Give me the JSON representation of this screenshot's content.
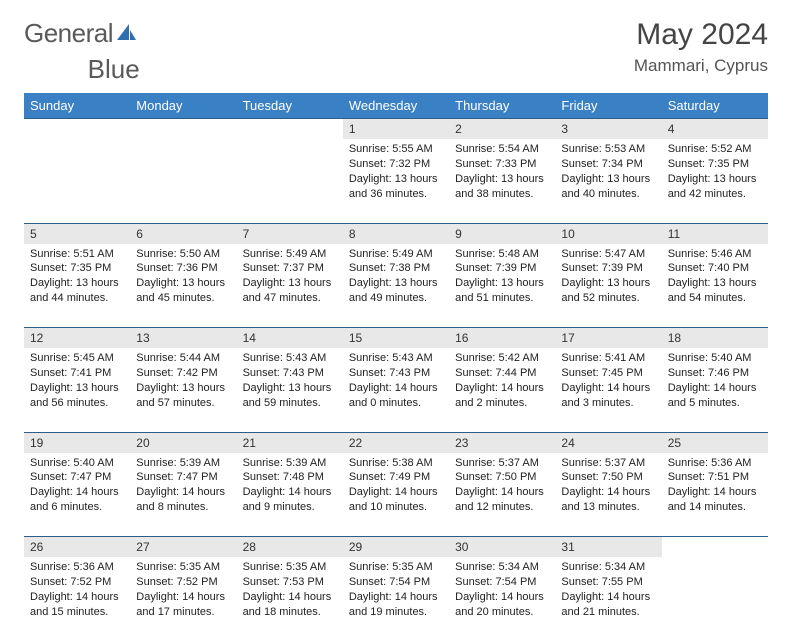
{
  "brand": {
    "word1": "General",
    "word2": "Blue"
  },
  "colors": {
    "header_bg": "#3a80c4",
    "header_text": "#ffffff",
    "daynum_bg": "#e8e8e8",
    "rule": "#2f5d8a",
    "title_text": "#444444",
    "body_text": "#222222",
    "logo_gray": "#5a5a5a",
    "logo_blue": "#2f6fb0"
  },
  "title": "May 2024",
  "location": "Mammari, Cyprus",
  "weekdays": [
    "Sunday",
    "Monday",
    "Tuesday",
    "Wednesday",
    "Thursday",
    "Friday",
    "Saturday"
  ],
  "weeks": [
    [
      null,
      null,
      null,
      {
        "n": "1",
        "sr": "Sunrise: 5:55 AM",
        "ss": "Sunset: 7:32 PM",
        "d1": "Daylight: 13 hours",
        "d2": "and 36 minutes."
      },
      {
        "n": "2",
        "sr": "Sunrise: 5:54 AM",
        "ss": "Sunset: 7:33 PM",
        "d1": "Daylight: 13 hours",
        "d2": "and 38 minutes."
      },
      {
        "n": "3",
        "sr": "Sunrise: 5:53 AM",
        "ss": "Sunset: 7:34 PM",
        "d1": "Daylight: 13 hours",
        "d2": "and 40 minutes."
      },
      {
        "n": "4",
        "sr": "Sunrise: 5:52 AM",
        "ss": "Sunset: 7:35 PM",
        "d1": "Daylight: 13 hours",
        "d2": "and 42 minutes."
      }
    ],
    [
      {
        "n": "5",
        "sr": "Sunrise: 5:51 AM",
        "ss": "Sunset: 7:35 PM",
        "d1": "Daylight: 13 hours",
        "d2": "and 44 minutes."
      },
      {
        "n": "6",
        "sr": "Sunrise: 5:50 AM",
        "ss": "Sunset: 7:36 PM",
        "d1": "Daylight: 13 hours",
        "d2": "and 45 minutes."
      },
      {
        "n": "7",
        "sr": "Sunrise: 5:49 AM",
        "ss": "Sunset: 7:37 PM",
        "d1": "Daylight: 13 hours",
        "d2": "and 47 minutes."
      },
      {
        "n": "8",
        "sr": "Sunrise: 5:49 AM",
        "ss": "Sunset: 7:38 PM",
        "d1": "Daylight: 13 hours",
        "d2": "and 49 minutes."
      },
      {
        "n": "9",
        "sr": "Sunrise: 5:48 AM",
        "ss": "Sunset: 7:39 PM",
        "d1": "Daylight: 13 hours",
        "d2": "and 51 minutes."
      },
      {
        "n": "10",
        "sr": "Sunrise: 5:47 AM",
        "ss": "Sunset: 7:39 PM",
        "d1": "Daylight: 13 hours",
        "d2": "and 52 minutes."
      },
      {
        "n": "11",
        "sr": "Sunrise: 5:46 AM",
        "ss": "Sunset: 7:40 PM",
        "d1": "Daylight: 13 hours",
        "d2": "and 54 minutes."
      }
    ],
    [
      {
        "n": "12",
        "sr": "Sunrise: 5:45 AM",
        "ss": "Sunset: 7:41 PM",
        "d1": "Daylight: 13 hours",
        "d2": "and 56 minutes."
      },
      {
        "n": "13",
        "sr": "Sunrise: 5:44 AM",
        "ss": "Sunset: 7:42 PM",
        "d1": "Daylight: 13 hours",
        "d2": "and 57 minutes."
      },
      {
        "n": "14",
        "sr": "Sunrise: 5:43 AM",
        "ss": "Sunset: 7:43 PM",
        "d1": "Daylight: 13 hours",
        "d2": "and 59 minutes."
      },
      {
        "n": "15",
        "sr": "Sunrise: 5:43 AM",
        "ss": "Sunset: 7:43 PM",
        "d1": "Daylight: 14 hours",
        "d2": "and 0 minutes."
      },
      {
        "n": "16",
        "sr": "Sunrise: 5:42 AM",
        "ss": "Sunset: 7:44 PM",
        "d1": "Daylight: 14 hours",
        "d2": "and 2 minutes."
      },
      {
        "n": "17",
        "sr": "Sunrise: 5:41 AM",
        "ss": "Sunset: 7:45 PM",
        "d1": "Daylight: 14 hours",
        "d2": "and 3 minutes."
      },
      {
        "n": "18",
        "sr": "Sunrise: 5:40 AM",
        "ss": "Sunset: 7:46 PM",
        "d1": "Daylight: 14 hours",
        "d2": "and 5 minutes."
      }
    ],
    [
      {
        "n": "19",
        "sr": "Sunrise: 5:40 AM",
        "ss": "Sunset: 7:47 PM",
        "d1": "Daylight: 14 hours",
        "d2": "and 6 minutes."
      },
      {
        "n": "20",
        "sr": "Sunrise: 5:39 AM",
        "ss": "Sunset: 7:47 PM",
        "d1": "Daylight: 14 hours",
        "d2": "and 8 minutes."
      },
      {
        "n": "21",
        "sr": "Sunrise: 5:39 AM",
        "ss": "Sunset: 7:48 PM",
        "d1": "Daylight: 14 hours",
        "d2": "and 9 minutes."
      },
      {
        "n": "22",
        "sr": "Sunrise: 5:38 AM",
        "ss": "Sunset: 7:49 PM",
        "d1": "Daylight: 14 hours",
        "d2": "and 10 minutes."
      },
      {
        "n": "23",
        "sr": "Sunrise: 5:37 AM",
        "ss": "Sunset: 7:50 PM",
        "d1": "Daylight: 14 hours",
        "d2": "and 12 minutes."
      },
      {
        "n": "24",
        "sr": "Sunrise: 5:37 AM",
        "ss": "Sunset: 7:50 PM",
        "d1": "Daylight: 14 hours",
        "d2": "and 13 minutes."
      },
      {
        "n": "25",
        "sr": "Sunrise: 5:36 AM",
        "ss": "Sunset: 7:51 PM",
        "d1": "Daylight: 14 hours",
        "d2": "and 14 minutes."
      }
    ],
    [
      {
        "n": "26",
        "sr": "Sunrise: 5:36 AM",
        "ss": "Sunset: 7:52 PM",
        "d1": "Daylight: 14 hours",
        "d2": "and 15 minutes."
      },
      {
        "n": "27",
        "sr": "Sunrise: 5:35 AM",
        "ss": "Sunset: 7:52 PM",
        "d1": "Daylight: 14 hours",
        "d2": "and 17 minutes."
      },
      {
        "n": "28",
        "sr": "Sunrise: 5:35 AM",
        "ss": "Sunset: 7:53 PM",
        "d1": "Daylight: 14 hours",
        "d2": "and 18 minutes."
      },
      {
        "n": "29",
        "sr": "Sunrise: 5:35 AM",
        "ss": "Sunset: 7:54 PM",
        "d1": "Daylight: 14 hours",
        "d2": "and 19 minutes."
      },
      {
        "n": "30",
        "sr": "Sunrise: 5:34 AM",
        "ss": "Sunset: 7:54 PM",
        "d1": "Daylight: 14 hours",
        "d2": "and 20 minutes."
      },
      {
        "n": "31",
        "sr": "Sunrise: 5:34 AM",
        "ss": "Sunset: 7:55 PM",
        "d1": "Daylight: 14 hours",
        "d2": "and 21 minutes."
      },
      null
    ]
  ]
}
